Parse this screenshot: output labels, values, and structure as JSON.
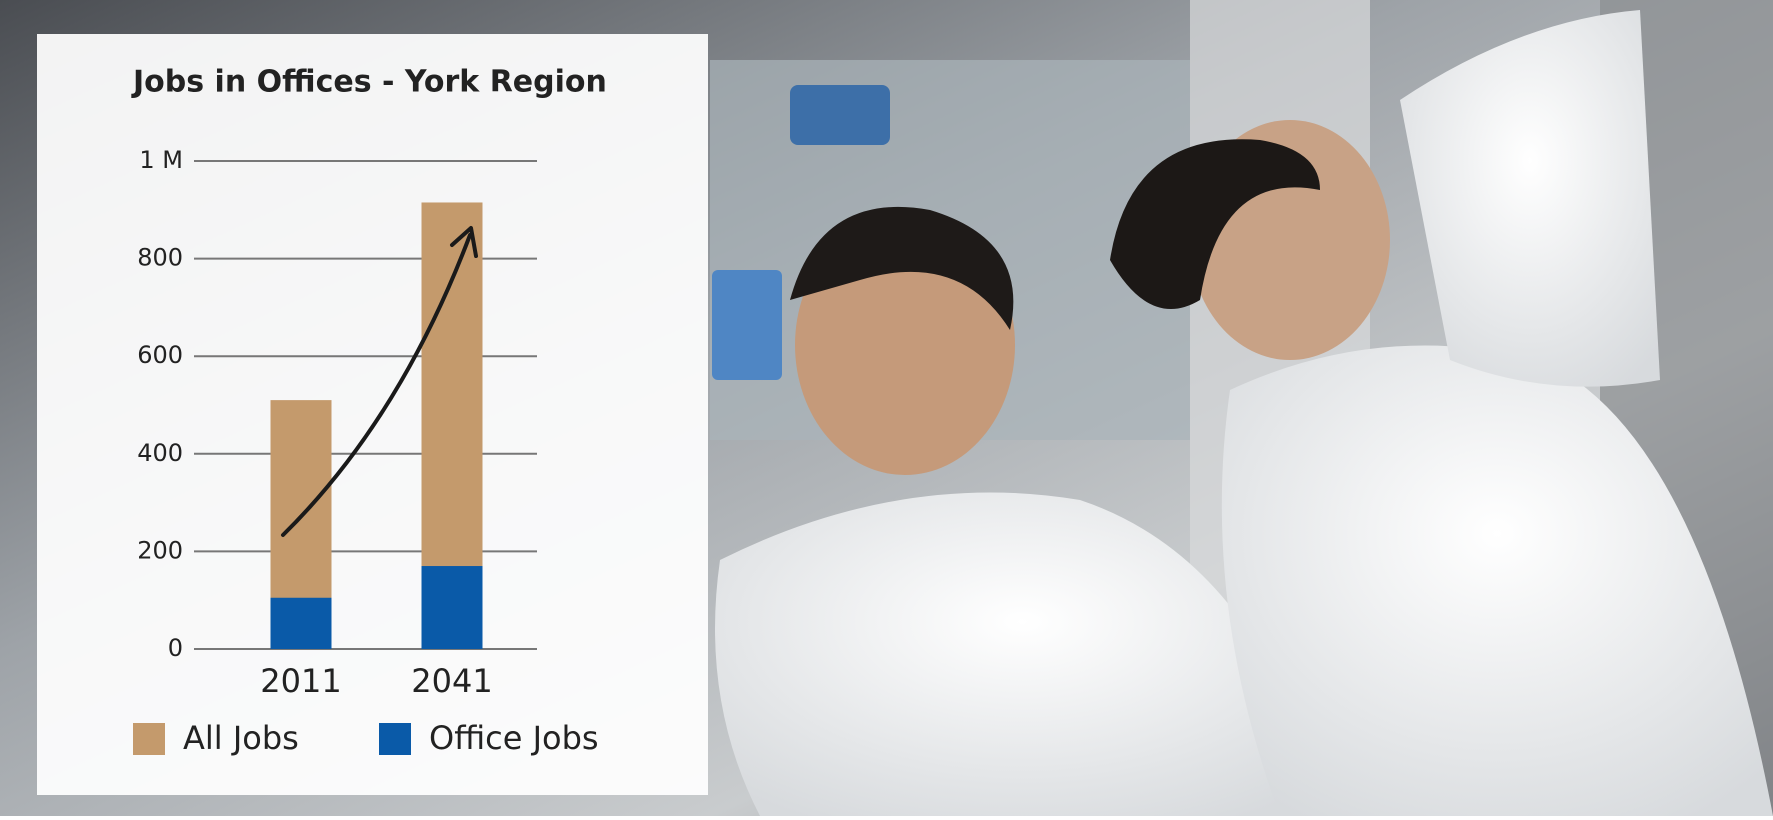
{
  "chart_data": {
    "type": "bar",
    "title": "Jobs in Offices - York Region",
    "categories": [
      "2011",
      "2041"
    ],
    "series": [
      {
        "name": "All Jobs",
        "color": "#c49a6c",
        "values": [
          510,
          915
        ]
      },
      {
        "name": "Office Jobs",
        "color": "#0a5aa8",
        "values": [
          105,
          170
        ]
      }
    ],
    "ylim": [
      0,
      1000
    ],
    "yticks": [
      0,
      200,
      400,
      600,
      800,
      {
        "value": 1000,
        "label": "1 M"
      }
    ],
    "grid": true
  }
}
